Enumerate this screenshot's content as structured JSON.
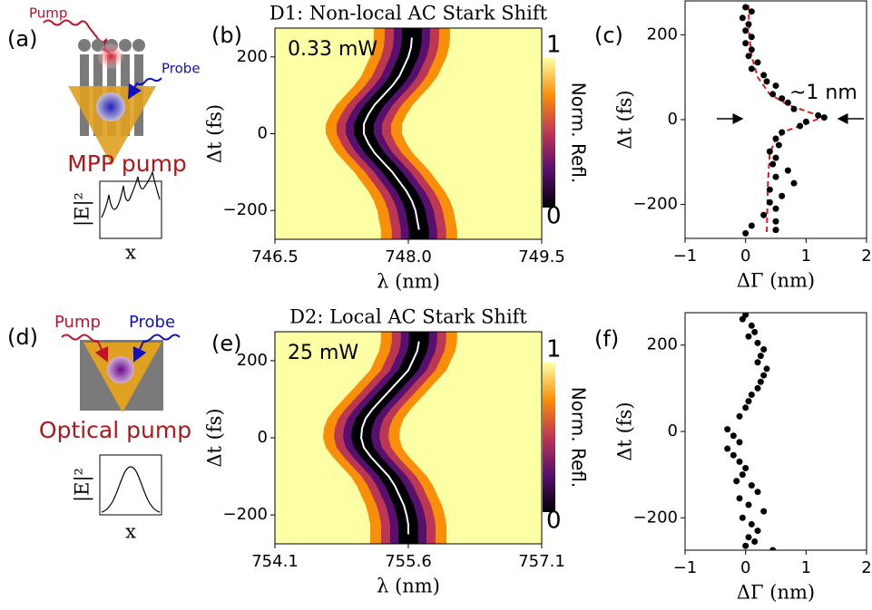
{
  "schematics": [
    {
      "panel_label": "(a)",
      "pump": "Pump",
      "probe": "Probe",
      "caption": "MPP pump",
      "ylabel": "|E|²",
      "xlabel": "x"
    },
    {
      "panel_label": "(d)",
      "pump": "Pump",
      "probe": "Probe",
      "caption": "Optical pump",
      "ylabel": "|E|²",
      "xlabel": "x"
    }
  ],
  "chart_data": [
    {
      "type": "heatmap",
      "panel_label": "(b)",
      "title": "D1: Non-local AC Stark Shift",
      "annotation": "0.33 mW",
      "xlabel": "λ (nm)",
      "ylabel": "Δt (fs)",
      "colorbar_label": "Norm. Refl.",
      "xlim": [
        746.5,
        749.5
      ],
      "xticks": [
        746.5,
        {
          "value": 748,
          "label": "748.0"
        },
        749.5
      ],
      "ylim": [
        -275,
        275
      ],
      "yticks": [
        {
          "value": -200,
          "label": "−200"
        },
        0,
        200
      ],
      "clim": [
        0,
        1
      ],
      "cticks": [
        0,
        1
      ],
      "colormap": [
        "#000004",
        "#57106e",
        "#bc3754",
        "#f98e09",
        "#fcffa4"
      ],
      "line_color": "#ffffff",
      "y": [
        250,
        225,
        200,
        175,
        150,
        125,
        100,
        75,
        50,
        25,
        0,
        -25,
        -50,
        -75,
        -100,
        -125,
        -150,
        -175,
        -200,
        -225,
        -250
      ],
      "x": [
        748.04,
        748.03,
        748.0,
        747.95,
        747.9,
        747.82,
        747.72,
        747.62,
        747.55,
        747.5,
        747.5,
        747.55,
        747.62,
        747.72,
        747.82,
        747.9,
        747.98,
        748.04,
        748.08,
        748.1,
        748.12
      ]
    },
    {
      "type": "scatter",
      "panel_label": "(c)",
      "annotation": "~1 nm",
      "xlabel": "ΔΓ (nm)",
      "ylabel": "Δt (fs)",
      "xlim": [
        -1,
        2
      ],
      "xticks": [
        {
          "value": -1,
          "label": "−1"
        },
        0,
        1,
        2
      ],
      "ylim": [
        -280,
        280
      ],
      "yticks": [
        {
          "value": -200,
          "label": "−200"
        },
        0,
        200
      ],
      "color": "#000000",
      "x": [
        0.0,
        0.1,
        -0.05,
        0.05,
        0.0,
        0.1,
        0.0,
        0.1,
        0.05,
        0.2,
        0.1,
        0.3,
        0.35,
        0.5,
        0.45,
        0.6,
        0.7,
        0.8,
        1.3,
        1.0,
        1.2,
        0.9,
        0.6,
        0.5,
        0.55,
        0.4,
        0.5,
        0.45,
        0.7,
        0.5,
        0.8,
        0.4,
        0.6,
        0.4,
        0.5,
        0.3,
        0.5,
        0.1,
        0.5,
        0.0
      ],
      "y": [
        265,
        255,
        240,
        225,
        210,
        195,
        180,
        165,
        150,
        135,
        120,
        105,
        90,
        80,
        60,
        50,
        40,
        25,
        5,
        -5,
        10,
        -15,
        -30,
        -45,
        -60,
        -75,
        -90,
        -105,
        -120,
        -135,
        -150,
        -165,
        -180,
        -195,
        -210,
        -225,
        -240,
        -250,
        -260,
        -268
      ],
      "fit": {
        "color": "#e41a1c",
        "x": [
          0.05,
          0.06,
          0.1,
          0.2,
          0.4,
          0.7,
          1.1,
          1.25,
          1.0,
          0.7,
          0.5,
          0.4,
          0.37,
          0.35
        ],
        "y": [
          270,
          200,
          150,
          100,
          60,
          35,
          15,
          5,
          -10,
          -25,
          -45,
          -80,
          -150,
          -270
        ]
      }
    },
    {
      "type": "heatmap",
      "panel_label": "(e)",
      "title": "D2: Local AC Stark Shift",
      "annotation": "25 mW",
      "xlabel": "λ (nm)",
      "ylabel": "Δt (fs)",
      "colorbar_label": "Norm. Refl.",
      "xlim": [
        754.1,
        757.1
      ],
      "xticks": [
        754.1,
        755.6,
        757.1
      ],
      "ylim": [
        -275,
        275
      ],
      "yticks": [
        {
          "value": -200,
          "label": "−200"
        },
        0,
        200
      ],
      "clim": [
        0,
        1
      ],
      "cticks": [
        0,
        1
      ],
      "colormap": [
        "#000004",
        "#57106e",
        "#bc3754",
        "#f98e09",
        "#fcffa4"
      ],
      "line_color": "#ffffff",
      "y": [
        250,
        225,
        200,
        175,
        150,
        125,
        100,
        75,
        50,
        25,
        0,
        -25,
        -50,
        -75,
        -100,
        -125,
        -150,
        -175,
        -200,
        -225,
        -250
      ],
      "x": [
        755.72,
        755.7,
        755.65,
        755.6,
        755.5,
        755.4,
        755.3,
        755.2,
        755.12,
        755.08,
        755.07,
        755.1,
        755.18,
        755.28,
        755.38,
        755.45,
        755.5,
        755.55,
        755.58,
        755.6,
        755.6
      ]
    },
    {
      "type": "scatter",
      "panel_label": "(f)",
      "xlabel": "ΔΓ (nm)",
      "ylabel": "Δt (fs)",
      "xlim": [
        -1,
        2
      ],
      "xticks": [
        {
          "value": -1,
          "label": "−1"
        },
        0,
        1,
        2
      ],
      "ylim": [
        -275,
        275
      ],
      "yticks": [
        {
          "value": -200,
          "label": "−200"
        },
        0,
        200
      ],
      "color": "#000000",
      "x": [
        0.0,
        -0.05,
        0.1,
        0.15,
        0.05,
        0.2,
        0.3,
        0.25,
        0.2,
        0.35,
        0.3,
        0.25,
        0.2,
        0.1,
        0.05,
        0.0,
        -0.1,
        -0.3,
        -0.2,
        -0.1,
        -0.3,
        -0.2,
        -0.1,
        0.0,
        -0.05,
        -0.15,
        0.1,
        0.2,
        -0.1,
        0.05,
        0.3,
        -0.05,
        0.1,
        0.2,
        0.05,
        0.15,
        0.0,
        0.45
      ],
      "y": [
        270,
        260,
        245,
        230,
        220,
        205,
        190,
        175,
        160,
        145,
        130,
        115,
        100,
        85,
        70,
        55,
        35,
        5,
        -10,
        -25,
        -40,
        -55,
        -70,
        -85,
        -100,
        -115,
        -125,
        -140,
        -155,
        -170,
        -185,
        -200,
        -215,
        -230,
        -245,
        -255,
        -265,
        -275
      ]
    }
  ]
}
